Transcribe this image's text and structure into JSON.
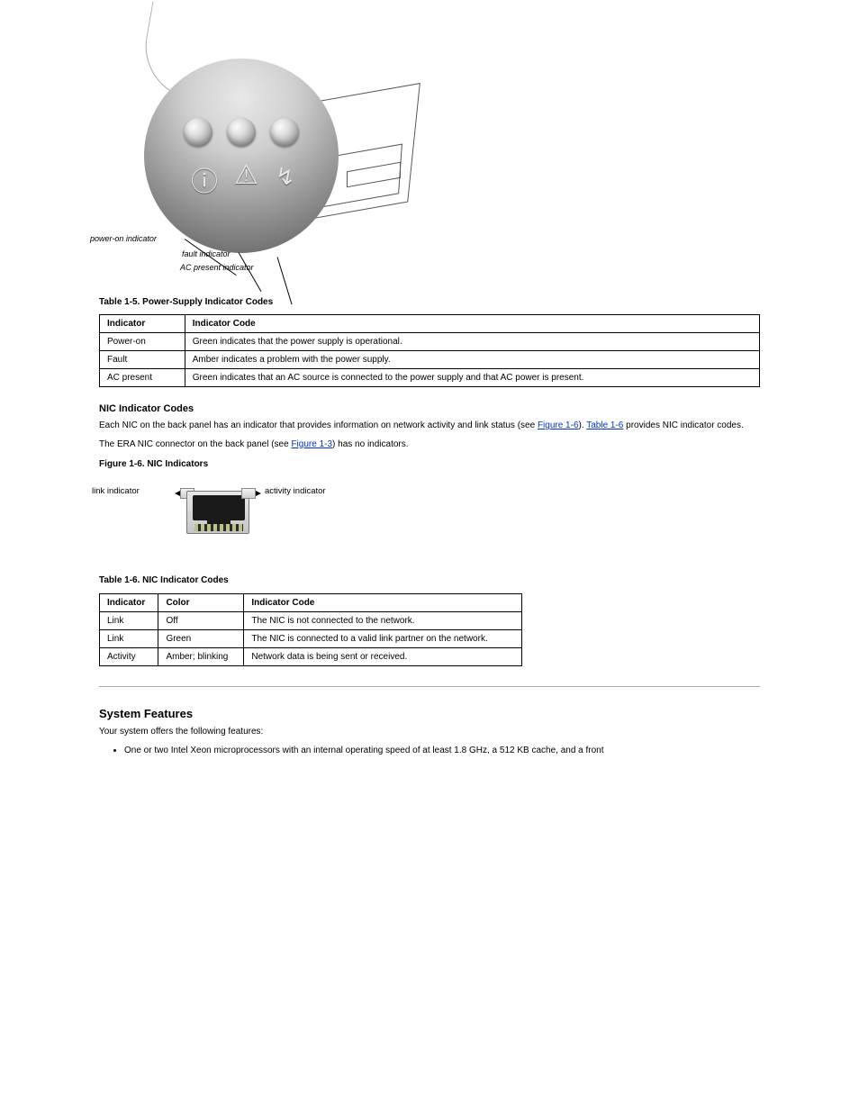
{
  "psu": {
    "label_power_on": "power-on indicator",
    "label_fault": "fault indicator",
    "label_ac": "AC present indicator",
    "table_caption": "Table 1-5. Power-Supply Indicator Codes",
    "table": {
      "headers": [
        "Indicator",
        "Indicator Code"
      ],
      "rows": [
        [
          "Power-on",
          "Green indicates that the power supply is operational."
        ],
        [
          "Fault",
          "Amber indicates a problem with the power supply."
        ],
        [
          "AC present",
          "Green indicates that an AC source is connected to the power supply and that AC power is present."
        ]
      ]
    }
  },
  "nic_section": {
    "title": "NIC Indicator Codes",
    "para_before_links": "Each NIC on the back panel has an indicator that provides information on network activity and link status (see ",
    "link_fig": "Figure 1-6",
    "sep1": "). ",
    "link_tab": "Table 1-6",
    "para_after_links": " provides NIC indicator codes.",
    "para2_before": "The ERA NIC connector on the back panel (see ",
    "link_fig2": "Figure 1-3",
    "para2_after": ") has no indicators.",
    "fig_caption": "Figure 1-6. NIC Indicators",
    "label_link": "link indicator",
    "label_activity": "activity indicator",
    "table_caption": "Table 1-6. NIC Indicator Codes",
    "table": {
      "headers": [
        "Indicator",
        "Color",
        "Indicator Code"
      ],
      "rows": [
        [
          "Link",
          "Off",
          "The NIC is not connected to the network."
        ],
        [
          "Link",
          "Green",
          "The NIC is connected to a valid link partner on the network."
        ],
        [
          "Activity",
          "Amber; blinking",
          "Network data is being sent or received."
        ]
      ]
    }
  },
  "features": {
    "title": "System Features",
    "intro": "Your system offers the following features:",
    "bullet1": "One or two Intel Xeon microprocessors with an internal operating speed of at least 1.8 GHz, a 512 KB cache, and a front"
  }
}
